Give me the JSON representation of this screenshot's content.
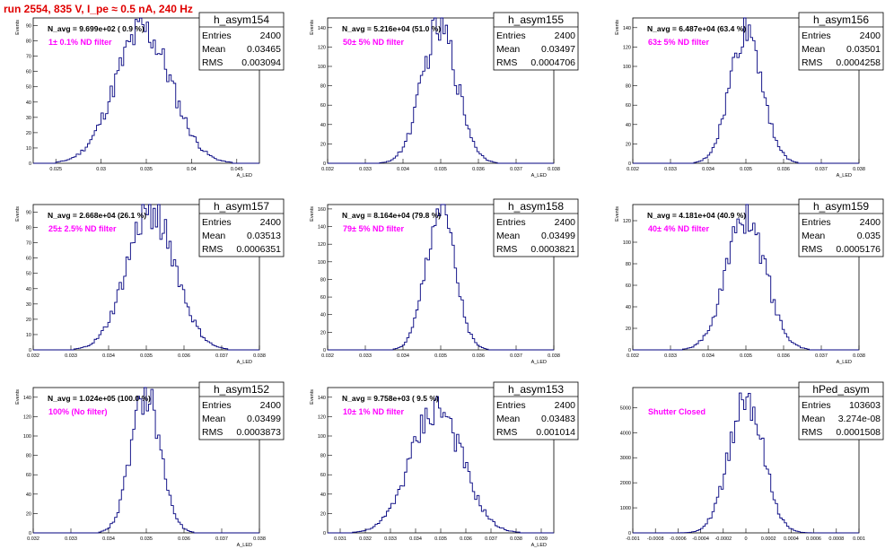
{
  "run_title": "run 2554,   835 V, I_pe ≈ 0.5 nA, 240 Hz",
  "colors": {
    "title": "#e00000",
    "annotation": "#ff00ff",
    "histogram": "#00007f",
    "axis": "#000000"
  },
  "stat_labels": {
    "entries": "Entries",
    "mean": "Mean",
    "rms": "RMS"
  },
  "chart_data": [
    {
      "type": "histogram",
      "name": "h_asym154",
      "entries": "2400",
      "mean": "0.03465",
      "rms": "0.003094",
      "navg": "N_avg = 9.699e+02 ( 0.9 %)",
      "annotation": "1± 0.1% ND filter",
      "ylabel": "Events",
      "xlabel": "A_LED",
      "xlim": [
        0.0225,
        0.0475
      ],
      "ylim": [
        0,
        95
      ],
      "xticks": [
        0.025,
        0.03,
        0.035,
        0.04,
        0.045
      ],
      "xtick_labels": [
        "0.025",
        "0.03",
        "0.035",
        "0.04",
        "0.045"
      ],
      "yticks": [
        0,
        10,
        20,
        30,
        40,
        50,
        60,
        70,
        80,
        90
      ],
      "ytick_labels": [
        "0",
        "10",
        "20",
        "30",
        "40",
        "50",
        "60",
        "70",
        "80",
        "90"
      ],
      "peak": 87,
      "sigma": 0.003094,
      "mu": 0.03465
    },
    {
      "type": "histogram",
      "name": "h_asym155",
      "entries": "2400",
      "mean": "0.03497",
      "rms": "0.0004706",
      "navg": "N_avg = 5.216e+04 (51.0 %)",
      "annotation": "50± 5% ND filter",
      "ylabel": "Events",
      "xlabel": "A_LED",
      "xlim": [
        0.032,
        0.038
      ],
      "ylim": [
        0,
        150
      ],
      "xticks": [
        0.032,
        0.033,
        0.034,
        0.035,
        0.036,
        0.037,
        0.038
      ],
      "xtick_labels": [
        "0.032",
        "0.033",
        "0.034",
        "0.035",
        "0.036",
        "0.037",
        "0.038"
      ],
      "yticks": [
        0,
        20,
        40,
        60,
        80,
        100,
        120,
        140
      ],
      "ytick_labels": [
        "0",
        "20",
        "40",
        "60",
        "80",
        "100",
        "120",
        "140"
      ],
      "peak": 140,
      "sigma": 0.0004706,
      "mu": 0.03497
    },
    {
      "type": "histogram",
      "name": "h_asym156",
      "entries": "2400",
      "mean": "0.03501",
      "rms": "0.0004258",
      "navg": "N_avg = 6.487e+04 (63.4 %)",
      "annotation": "63± 5% ND filter",
      "ylabel": "Events",
      "xlabel": "A_LED",
      "xlim": [
        0.032,
        0.038
      ],
      "ylim": [
        0,
        150
      ],
      "xticks": [
        0.032,
        0.033,
        0.034,
        0.035,
        0.036,
        0.037,
        0.038
      ],
      "xtick_labels": [
        "0.032",
        "0.033",
        "0.034",
        "0.035",
        "0.036",
        "0.037",
        "0.038"
      ],
      "yticks": [
        0,
        20,
        40,
        60,
        80,
        100,
        120,
        140
      ],
      "ytick_labels": [
        "0",
        "20",
        "40",
        "60",
        "80",
        "100",
        "120",
        "140"
      ],
      "peak": 140,
      "sigma": 0.0004258,
      "mu": 0.03501
    },
    {
      "type": "histogram",
      "name": "h_asym157",
      "entries": "2400",
      "mean": "0.03513",
      "rms": "0.0006351",
      "navg": "N_avg = 2.668e+04 (26.1 %)",
      "annotation": "25± 2.5% ND filter",
      "ylabel": "Events",
      "xlabel": "A_LED",
      "xlim": [
        0.032,
        0.038
      ],
      "ylim": [
        0,
        95
      ],
      "xticks": [
        0.032,
        0.033,
        0.034,
        0.035,
        0.036,
        0.037,
        0.038
      ],
      "xtick_labels": [
        "0.032",
        "0.033",
        "0.034",
        "0.035",
        "0.036",
        "0.037",
        "0.038"
      ],
      "yticks": [
        0,
        10,
        20,
        30,
        40,
        50,
        60,
        70,
        80,
        90
      ],
      "ytick_labels": [
        "0",
        "10",
        "20",
        "30",
        "40",
        "50",
        "60",
        "70",
        "80",
        "90"
      ],
      "peak": 92,
      "sigma": 0.0006351,
      "mu": 0.03513
    },
    {
      "type": "histogram",
      "name": "h_asym158",
      "entries": "2400",
      "mean": "0.03499",
      "rms": "0.0003821",
      "navg": "N_avg = 8.164e+04 (79.8 %)",
      "annotation": "79± 5% ND filter",
      "ylabel": "Events",
      "xlabel": "A_LED",
      "xlim": [
        0.032,
        0.038
      ],
      "ylim": [
        0,
        165
      ],
      "xticks": [
        0.032,
        0.033,
        0.034,
        0.035,
        0.036,
        0.037,
        0.038
      ],
      "xtick_labels": [
        "0.032",
        "0.033",
        "0.034",
        "0.035",
        "0.036",
        "0.037",
        "0.038"
      ],
      "yticks": [
        0,
        20,
        40,
        60,
        80,
        100,
        120,
        140,
        160
      ],
      "ytick_labels": [
        "0",
        "20",
        "40",
        "60",
        "80",
        "100",
        "120",
        "140",
        "160"
      ],
      "peak": 160,
      "sigma": 0.0003821,
      "mu": 0.03499
    },
    {
      "type": "histogram",
      "name": "h_asym159",
      "entries": "2400",
      "mean": "0.035",
      "rms": "0.0005176",
      "navg": "N_avg = 4.181e+04 (40.9 %)",
      "annotation": "40± 4% ND filter",
      "ylabel": "Events",
      "xlabel": "A_LED",
      "xlim": [
        0.032,
        0.038
      ],
      "ylim": [
        0,
        135
      ],
      "xticks": [
        0.032,
        0.033,
        0.034,
        0.035,
        0.036,
        0.037,
        0.038
      ],
      "xtick_labels": [
        "0.032",
        "0.033",
        "0.034",
        "0.035",
        "0.036",
        "0.037",
        "0.038"
      ],
      "yticks": [
        0,
        20,
        40,
        60,
        80,
        100,
        120
      ],
      "ytick_labels": [
        "0",
        "20",
        "40",
        "60",
        "80",
        "100",
        "120"
      ],
      "peak": 125,
      "sigma": 0.0005176,
      "mu": 0.035
    },
    {
      "type": "histogram",
      "name": "h_asym152",
      "entries": "2400",
      "mean": "0.03499",
      "rms": "0.0003873",
      "navg": "N_avg = 1.024e+05 (100.0 %)",
      "annotation": "100% (No filter)",
      "ylabel": "Events",
      "xlabel": "A_LED",
      "xlim": [
        0.032,
        0.038
      ],
      "ylim": [
        0,
        150
      ],
      "xticks": [
        0.032,
        0.033,
        0.034,
        0.035,
        0.036,
        0.037,
        0.038
      ],
      "xtick_labels": [
        "0.032",
        "0.033",
        "0.034",
        "0.035",
        "0.036",
        "0.037",
        "0.038"
      ],
      "yticks": [
        0,
        20,
        40,
        60,
        80,
        100,
        120,
        140
      ],
      "ytick_labels": [
        "0",
        "20",
        "40",
        "60",
        "80",
        "100",
        "120",
        "140"
      ],
      "peak": 145,
      "sigma": 0.0003873,
      "mu": 0.03499
    },
    {
      "type": "histogram",
      "name": "h_asym153",
      "entries": "2400",
      "mean": "0.03483",
      "rms": "0.001014",
      "navg": "N_avg = 9.758e+03 ( 9.5 %)",
      "annotation": "10± 1% ND filter",
      "ylabel": "Events",
      "xlabel": "A_LED",
      "xlim": [
        0.0305,
        0.0395
      ],
      "ylim": [
        0,
        150
      ],
      "xticks": [
        0.031,
        0.032,
        0.033,
        0.034,
        0.035,
        0.036,
        0.037,
        0.038,
        0.039
      ],
      "xtick_labels": [
        "0.031",
        "0.032",
        "0.033",
        "0.034",
        "0.035",
        "0.036",
        "0.037",
        "0.038",
        "0.039"
      ],
      "yticks": [
        0,
        20,
        40,
        60,
        80,
        100,
        120,
        140
      ],
      "ytick_labels": [
        "0",
        "20",
        "40",
        "60",
        "80",
        "100",
        "120",
        "140"
      ],
      "peak": 130,
      "sigma": 0.001014,
      "mu": 0.03483
    },
    {
      "type": "histogram",
      "name": "hPed_asym",
      "entries": "103603",
      "mean": "3.274e-08",
      "rms": "0.0001508",
      "navg": "",
      "annotation": "Shutter Closed",
      "ylabel": "",
      "xlabel": "",
      "xlim": [
        -0.001,
        0.001
      ],
      "ylim": [
        0,
        5800
      ],
      "xticks": [
        -0.001,
        -0.0008,
        -0.0006,
        -0.0004,
        -0.0002,
        0,
        0.0002,
        0.0004,
        0.0006,
        0.0008,
        0.001
      ],
      "xtick_labels": [
        "-0.001",
        "-0.0008",
        "-0.0006",
        "-0.0004",
        "-0.0002",
        "0",
        "0.0002",
        "0.0004",
        "0.0006",
        "0.0008",
        "0.001"
      ],
      "yticks": [
        0,
        1000,
        2000,
        3000,
        4000,
        5000
      ],
      "ytick_labels": [
        "0",
        "1000",
        "2000",
        "3000",
        "4000",
        "5000"
      ],
      "peak": 5400,
      "sigma": 0.0001508,
      "mu": 0.0
    }
  ]
}
